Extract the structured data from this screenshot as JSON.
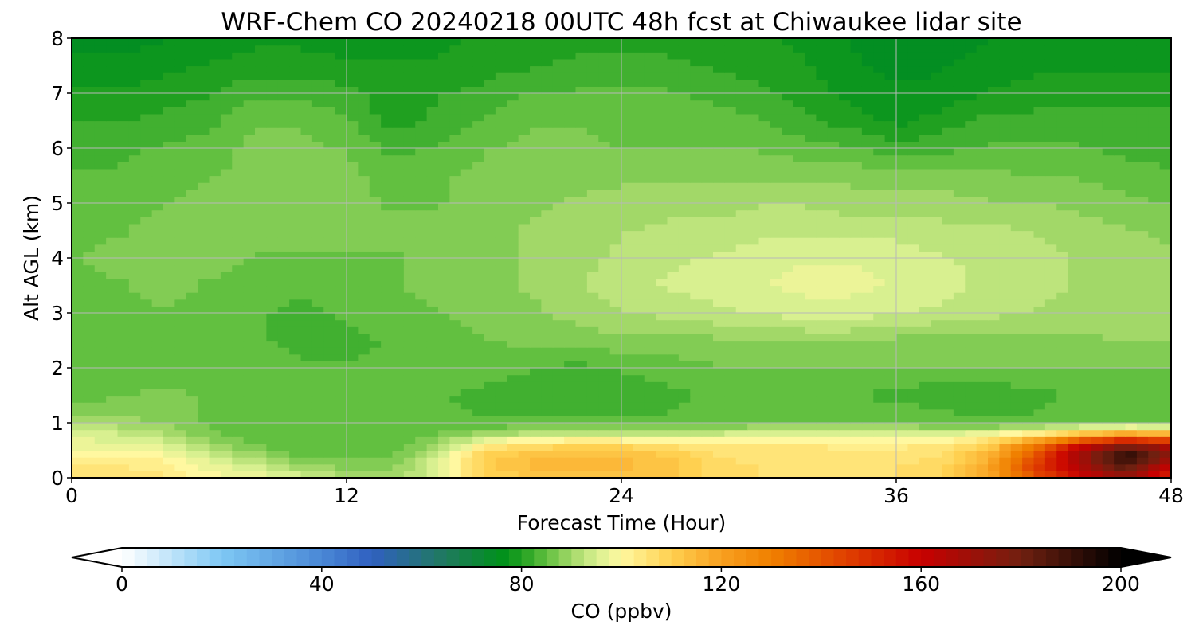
{
  "chart_data": {
    "type": "heatmap",
    "title": "WRF-Chem CO  20240218 00UTC 48h fcst at Chiwaukee lidar site",
    "xlabel": "Forecast Time (Hour)",
    "ylabel": "Alt AGL (km)",
    "xlim": [
      0,
      48
    ],
    "ylim": [
      0,
      8
    ],
    "xticks": [
      0,
      12,
      24,
      36,
      48
    ],
    "xtick_labels": [
      "0",
      "12",
      "24",
      "36",
      "48"
    ],
    "yticks": [
      0,
      1,
      2,
      3,
      4,
      5,
      6,
      7,
      8
    ],
    "ytick_labels": [
      "0",
      "1",
      "2",
      "3",
      "4",
      "5",
      "6",
      "7",
      "8"
    ],
    "grid": true,
    "x": [
      0,
      2,
      4,
      6,
      8,
      10,
      12,
      14,
      16,
      18,
      20,
      22,
      24,
      26,
      28,
      30,
      32,
      34,
      36,
      38,
      40,
      42,
      44,
      46,
      48
    ],
    "y": [
      0,
      0.2,
      0.4,
      0.6,
      0.8,
      1,
      1.5,
      2,
      2.5,
      3,
      3.5,
      4,
      4.5,
      5,
      5.5,
      6,
      6.5,
      7,
      7.5,
      8
    ],
    "z": [
      [
        105,
        106,
        104,
        100,
        98,
        95,
        92,
        90,
        96,
        108,
        112,
        113,
        113,
        112,
        108,
        106,
        106,
        106,
        106,
        108,
        118,
        140,
        158,
        170,
        150
      ],
      [
        104,
        104,
        103,
        98,
        94,
        90,
        88,
        88,
        96,
        110,
        114,
        114,
        114,
        113,
        108,
        106,
        106,
        106,
        106,
        108,
        118,
        145,
        165,
        185,
        160
      ],
      [
        102,
        101,
        100,
        95,
        90,
        86,
        85,
        86,
        94,
        110,
        114,
        114,
        114,
        112,
        106,
        105,
        105,
        105,
        105,
        107,
        116,
        140,
        170,
        195,
        175
      ],
      [
        98,
        97,
        96,
        90,
        86,
        84,
        84,
        85,
        90,
        102,
        107,
        108,
        108,
        106,
        104,
        104,
        104,
        103,
        103,
        104,
        110,
        130,
        158,
        175,
        165
      ],
      [
        95,
        94,
        92,
        87,
        85,
        84,
        84,
        84,
        86,
        90,
        92,
        93,
        93,
        92,
        94,
        96,
        96,
        96,
        96,
        96,
        98,
        104,
        112,
        120,
        115
      ],
      [
        90,
        90,
        88,
        86,
        85,
        85,
        85,
        85,
        84,
        84,
        84,
        84,
        84,
        84,
        85,
        86,
        86,
        86,
        86,
        85,
        84,
        84,
        85,
        86,
        86
      ],
      [
        85,
        86,
        87,
        86,
        86,
        85,
        85,
        85,
        84,
        83,
        82,
        82,
        82,
        83,
        84,
        84,
        84,
        84,
        83,
        82,
        82,
        83,
        84,
        84,
        85
      ],
      [
        84,
        85,
        85,
        85,
        85,
        84,
        84,
        84,
        85,
        85,
        84,
        83,
        84,
        85,
        86,
        86,
        86,
        86,
        86,
        86,
        86,
        86,
        86,
        86,
        86
      ],
      [
        84,
        84,
        84,
        84,
        84,
        83,
        83,
        84,
        85,
        86,
        87,
        87,
        88,
        88,
        88,
        89,
        89,
        89,
        88,
        88,
        88,
        88,
        88,
        89,
        89
      ],
      [
        85,
        86,
        86,
        85,
        84,
        83,
        84,
        85,
        86,
        87,
        88,
        90,
        91,
        92,
        93,
        94,
        95,
        95,
        94,
        93,
        92,
        91,
        90,
        90,
        90
      ],
      [
        86,
        86,
        87,
        86,
        85,
        84,
        85,
        86,
        87,
        88,
        89,
        91,
        93,
        94,
        95,
        96,
        97,
        97,
        96,
        95,
        93,
        92,
        91,
        90,
        90
      ],
      [
        86,
        87,
        87,
        87,
        86,
        86,
        86,
        86,
        87,
        88,
        89,
        90,
        92,
        93,
        94,
        95,
        96,
        96,
        95,
        94,
        93,
        92,
        91,
        90,
        89
      ],
      [
        86,
        86,
        87,
        88,
        88,
        87,
        87,
        87,
        87,
        88,
        89,
        90,
        91,
        92,
        92,
        93,
        93,
        93,
        93,
        92,
        92,
        91,
        90,
        89,
        88
      ],
      [
        85,
        85,
        86,
        87,
        88,
        88,
        87,
        86,
        86,
        87,
        88,
        89,
        90,
        90,
        90,
        91,
        91,
        90,
        90,
        90,
        89,
        89,
        88,
        87,
        86
      ],
      [
        84,
        84,
        85,
        86,
        87,
        88,
        87,
        85,
        86,
        87,
        88,
        88,
        88,
        88,
        88,
        88,
        88,
        88,
        87,
        87,
        87,
        86,
        86,
        85,
        84
      ],
      [
        83,
        83,
        84,
        85,
        87,
        87,
        86,
        83,
        84,
        86,
        87,
        87,
        86,
        86,
        86,
        86,
        85,
        84,
        82,
        83,
        84,
        84,
        84,
        83,
        83
      ],
      [
        81,
        81,
        82,
        83,
        86,
        86,
        84,
        80,
        82,
        84,
        86,
        86,
        85,
        85,
        85,
        84,
        82,
        80,
        78,
        80,
        82,
        82,
        82,
        82,
        82
      ],
      [
        79,
        79,
        80,
        81,
        83,
        83,
        82,
        80,
        81,
        82,
        84,
        84,
        84,
        84,
        83,
        82,
        80,
        78,
        77,
        77,
        79,
        80,
        80,
        80,
        80
      ],
      [
        77,
        77,
        78,
        79,
        80,
        80,
        79,
        79,
        79,
        80,
        81,
        82,
        82,
        82,
        81,
        80,
        79,
        77,
        75,
        76,
        77,
        78,
        78,
        78,
        78
      ],
      [
        75,
        75,
        76,
        77,
        78,
        78,
        78,
        78,
        78,
        79,
        80,
        80,
        80,
        80,
        80,
        79,
        78,
        76,
        74,
        75,
        76,
        77,
        77,
        77,
        77
      ]
    ],
    "colorbar": {
      "label": "CO  (ppbv)",
      "min": 0,
      "max": 200,
      "extend": "both",
      "ticks": [
        0,
        40,
        80,
        120,
        160,
        200
      ],
      "tick_labels": [
        "0",
        "40",
        "80",
        "120",
        "160",
        "200"
      ],
      "colors": [
        {
          "v": 0,
          "c": "#ffffff"
        },
        {
          "v": 20,
          "c": "#7ec8f4"
        },
        {
          "v": 40,
          "c": "#4a88d6"
        },
        {
          "v": 50,
          "c": "#3060c0"
        },
        {
          "v": 65,
          "c": "#1e7a5c"
        },
        {
          "v": 76,
          "c": "#00901c"
        },
        {
          "v": 80,
          "c": "#20a020"
        },
        {
          "v": 85,
          "c": "#62c040"
        },
        {
          "v": 90,
          "c": "#a2d868"
        },
        {
          "v": 95,
          "c": "#d8f090"
        },
        {
          "v": 100,
          "c": "#fff8a0"
        },
        {
          "v": 110,
          "c": "#ffd050"
        },
        {
          "v": 120,
          "c": "#f8a020"
        },
        {
          "v": 130,
          "c": "#f08000"
        },
        {
          "v": 145,
          "c": "#e04000"
        },
        {
          "v": 160,
          "c": "#c80000"
        },
        {
          "v": 180,
          "c": "#702010"
        },
        {
          "v": 200,
          "c": "#000000"
        }
      ]
    }
  }
}
